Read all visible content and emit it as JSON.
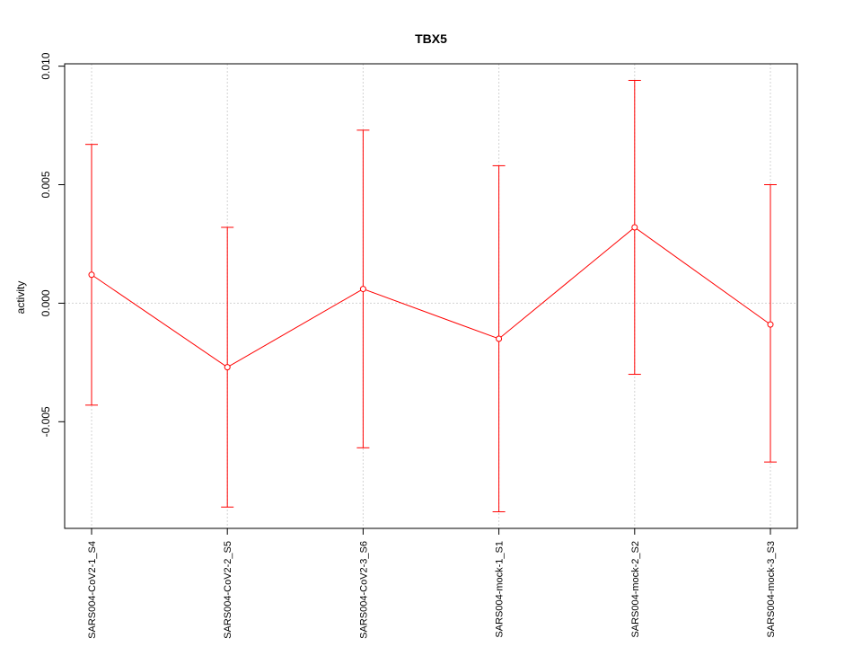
{
  "chart_data": {
    "type": "line",
    "title": "TBX5",
    "xlabel": "",
    "ylabel": "activity",
    "categories": [
      "SARS004-CoV2-1_S4",
      "SARS004-CoV2-2_S5",
      "SARS004-CoV2-3_S6",
      "SARS004-mock-1_S1",
      "SARS004-mock-2_S2",
      "SARS004-mock-3_S3"
    ],
    "series": [
      {
        "values": [
          0.0012,
          -0.0027,
          0.0006,
          -0.0015,
          0.0032,
          -0.0009
        ],
        "lower": [
          -0.0043,
          -0.0086,
          -0.0061,
          -0.0088,
          -0.003,
          -0.0067
        ],
        "upper": [
          0.0067,
          0.0032,
          0.0073,
          0.0058,
          0.0094,
          0.005
        ]
      }
    ],
    "yticks": [
      -0.005,
      0.0,
      0.005,
      0.01
    ],
    "ytick_labels": [
      "-0.005",
      "0.000",
      "0.005",
      "0.010"
    ],
    "ylim": [
      -0.0095,
      0.0101
    ],
    "grid": true,
    "reference_line": 0,
    "colors": {
      "series": "#ff0000",
      "grid": "#d3d3d3",
      "axis": "#000000"
    }
  }
}
